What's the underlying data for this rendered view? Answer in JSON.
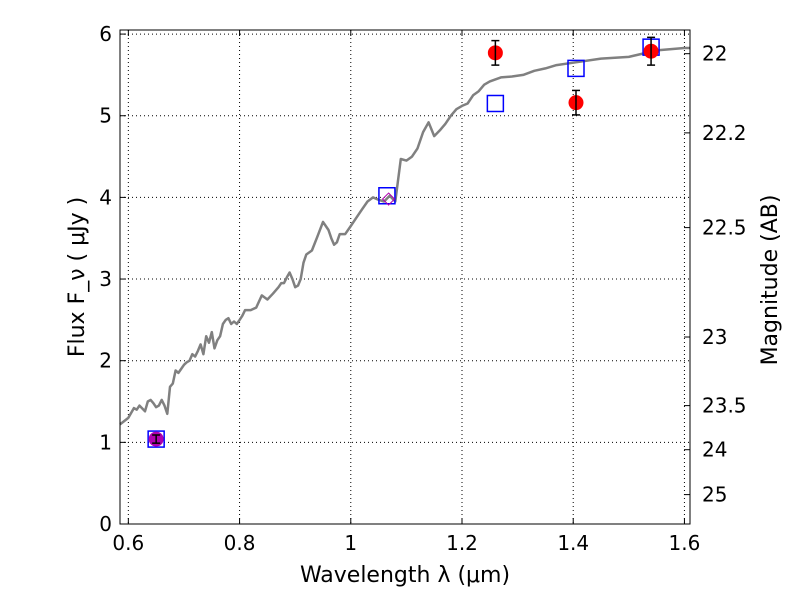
{
  "chart_data": {
    "type": "scatter",
    "xlabel": "Wavelength  λ (μm)",
    "ylabel": "Flux  F_ν  ( μJy )",
    "ylabel_right": "Magnitude (AB)",
    "xlim": [
      0.585,
      1.61
    ],
    "ylim": [
      0,
      6.05
    ],
    "grid": true,
    "x_ticks": [
      0.6,
      0.8,
      1.0,
      1.2,
      1.4,
      1.6
    ],
    "x_tick_labels": [
      "0.6",
      "0.8",
      "1",
      "1.2",
      "1.4",
      "1.6"
    ],
    "y_ticks": [
      0,
      1,
      2,
      3,
      4,
      5,
      6
    ],
    "y_tick_labels": [
      "0",
      "1",
      "2",
      "3",
      "4",
      "5",
      "6"
    ],
    "right_ticks": [
      {
        "flux": 5.76,
        "label": "22"
      },
      {
        "flux": 4.79,
        "label": "22.2"
      },
      {
        "flux": 3.63,
        "label": "22.5"
      },
      {
        "flux": 2.29,
        "label": "23"
      },
      {
        "flux": 1.45,
        "label": "23.5"
      },
      {
        "flux": 0.91,
        "label": "24"
      },
      {
        "flux": 0.36,
        "label": "25"
      }
    ],
    "series": [
      {
        "style": "line",
        "color": "#808080",
        "x": [
          0.585,
          0.6,
          0.61,
          0.615,
          0.62,
          0.63,
          0.635,
          0.64,
          0.645,
          0.65,
          0.655,
          0.66,
          0.665,
          0.67,
          0.675,
          0.68,
          0.685,
          0.69,
          0.695,
          0.7,
          0.705,
          0.71,
          0.715,
          0.72,
          0.725,
          0.73,
          0.735,
          0.74,
          0.745,
          0.75,
          0.755,
          0.76,
          0.765,
          0.77,
          0.775,
          0.78,
          0.785,
          0.79,
          0.795,
          0.8,
          0.805,
          0.81,
          0.82,
          0.83,
          0.84,
          0.85,
          0.86,
          0.87,
          0.875,
          0.88,
          0.885,
          0.89,
          0.895,
          0.9,
          0.905,
          0.91,
          0.915,
          0.92,
          0.93,
          0.94,
          0.95,
          0.96,
          0.965,
          0.97,
          0.975,
          0.98,
          0.99,
          1.0,
          1.01,
          1.02,
          1.03,
          1.04,
          1.05,
          1.06,
          1.07,
          1.08,
          1.09,
          1.1,
          1.11,
          1.12,
          1.13,
          1.14,
          1.15,
          1.16,
          1.17,
          1.18,
          1.19,
          1.2,
          1.21,
          1.22,
          1.23,
          1.24,
          1.25,
          1.27,
          1.29,
          1.31,
          1.33,
          1.35,
          1.37,
          1.4,
          1.45,
          1.5,
          1.55,
          1.6,
          1.61
        ],
        "y": [
          1.22,
          1.3,
          1.42,
          1.4,
          1.45,
          1.38,
          1.5,
          1.52,
          1.48,
          1.43,
          1.45,
          1.52,
          1.45,
          1.35,
          1.68,
          1.72,
          1.88,
          1.85,
          1.9,
          1.95,
          1.98,
          2.0,
          2.08,
          2.05,
          2.12,
          2.2,
          2.08,
          2.3,
          2.22,
          2.35,
          2.15,
          2.25,
          2.3,
          2.45,
          2.5,
          2.52,
          2.45,
          2.48,
          2.45,
          2.5,
          2.55,
          2.62,
          2.62,
          2.65,
          2.8,
          2.75,
          2.82,
          2.9,
          2.95,
          2.95,
          3.02,
          3.08,
          3.0,
          2.9,
          2.92,
          3.0,
          3.2,
          3.3,
          3.35,
          3.52,
          3.7,
          3.6,
          3.5,
          3.42,
          3.45,
          3.55,
          3.55,
          3.65,
          3.75,
          3.85,
          3.95,
          4.0,
          3.97,
          3.95,
          4.02,
          3.95,
          4.47,
          4.45,
          4.5,
          4.6,
          4.8,
          4.92,
          4.75,
          4.82,
          4.9,
          5.0,
          5.08,
          5.12,
          5.15,
          5.25,
          5.3,
          5.38,
          5.42,
          5.47,
          5.48,
          5.5,
          5.55,
          5.58,
          5.62,
          5.65,
          5.7,
          5.72,
          5.8,
          5.83,
          5.83
        ]
      },
      {
        "style": "square",
        "color": "#0000ff",
        "x": [
          0.65,
          1.065,
          1.26,
          1.405,
          1.54
        ],
        "y": [
          1.04,
          4.02,
          5.15,
          5.58,
          5.84
        ]
      },
      {
        "style": "circle-errorbar",
        "color": "#ff0000",
        "x": [
          1.26,
          1.405,
          1.54
        ],
        "y": [
          5.77,
          5.16,
          5.79
        ],
        "err": [
          0.15,
          0.15,
          0.17
        ]
      },
      {
        "style": "circle-errorbar",
        "color": "#b000b0",
        "x": [
          0.65
        ],
        "y": [
          1.04
        ],
        "err": [
          0.05
        ]
      },
      {
        "style": "diamond",
        "color": "#b000b0",
        "x": [
          1.068
        ],
        "y": [
          3.98
        ]
      }
    ]
  }
}
